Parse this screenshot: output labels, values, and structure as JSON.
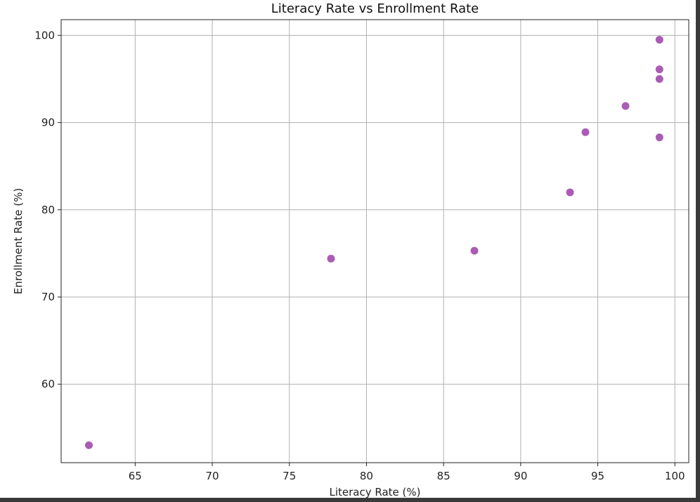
{
  "chart_data": {
    "type": "scatter",
    "title": "Literacy Rate vs Enrollment Rate",
    "xlabel": "Literacy Rate (%)",
    "ylabel": "Enrollment Rate (%)",
    "xlim": [
      60.2,
      100.9
    ],
    "ylim": [
      51.0,
      101.8
    ],
    "xticks": [
      65,
      70,
      75,
      80,
      85,
      90,
      95,
      100
    ],
    "yticks": [
      60,
      70,
      80,
      90,
      100
    ],
    "grid": true,
    "marker_color": "#9b3fa8",
    "points": [
      {
        "x": 62.0,
        "y": 53.0
      },
      {
        "x": 77.7,
        "y": 74.4
      },
      {
        "x": 87.0,
        "y": 75.3
      },
      {
        "x": 93.2,
        "y": 82.0
      },
      {
        "x": 94.2,
        "y": 88.9
      },
      {
        "x": 96.8,
        "y": 91.9
      },
      {
        "x": 99.0,
        "y": 99.5
      },
      {
        "x": 99.0,
        "y": 96.1
      },
      {
        "x": 99.0,
        "y": 95.0
      },
      {
        "x": 99.0,
        "y": 88.3
      }
    ]
  }
}
